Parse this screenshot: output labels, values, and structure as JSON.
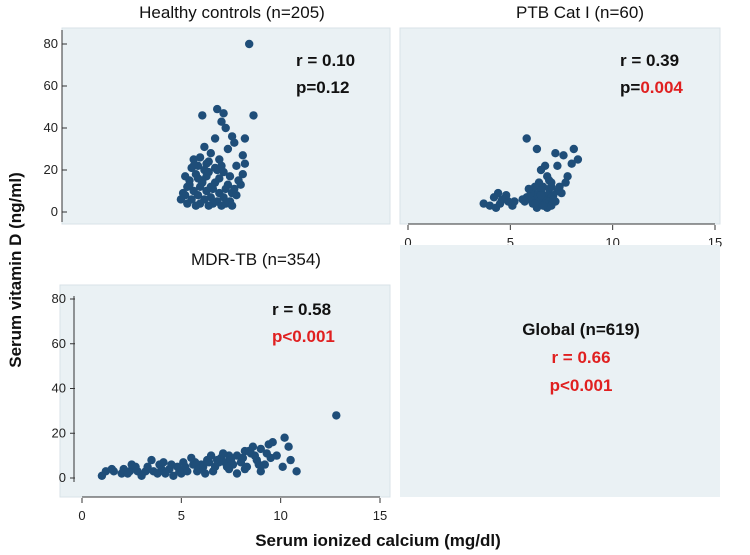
{
  "figure": {
    "ylabel": "Serum vitamin D (ng/ml)",
    "xlabel": "Serum ionized calcium (mg/dl)",
    "global": {
      "label": "Global (n=619)",
      "r": "r = 0.66",
      "p": "p<0.001"
    }
  },
  "colors": {
    "marker": "#1f4e79",
    "text": "#111111",
    "significant": "#e02020",
    "plotBg": "#eaf1f4",
    "axis": "#333333"
  },
  "chart_data": [
    {
      "type": "scatter",
      "title": "Healthy controls (n=205)",
      "r_text": "r = 0.10",
      "p_text": "p=0.12",
      "p_prefix": "",
      "p_value": "",
      "xlim": [
        0,
        15
      ],
      "ylim": [
        0,
        80
      ],
      "y_ticks": [
        0,
        20,
        40,
        60,
        80
      ],
      "x_ticks": [],
      "points": [
        [
          8.4,
          80
        ],
        [
          6.9,
          49
        ],
        [
          7.2,
          47
        ],
        [
          6.2,
          46
        ],
        [
          8.6,
          46
        ],
        [
          7.1,
          43
        ],
        [
          7.3,
          40
        ],
        [
          7.6,
          36
        ],
        [
          6.8,
          35
        ],
        [
          8.2,
          35
        ],
        [
          7.7,
          33
        ],
        [
          6.3,
          31
        ],
        [
          7.4,
          30
        ],
        [
          6.6,
          28
        ],
        [
          8.1,
          27
        ],
        [
          6.1,
          26
        ],
        [
          5.8,
          25
        ],
        [
          7.0,
          25
        ],
        [
          6.5,
          24
        ],
        [
          8.2,
          23
        ],
        [
          6.0,
          22
        ],
        [
          7.8,
          22
        ],
        [
          5.7,
          21
        ],
        [
          6.3,
          20
        ],
        [
          6.9,
          20
        ],
        [
          7.2,
          19
        ],
        [
          5.9,
          18
        ],
        [
          6.4,
          17
        ],
        [
          7.0,
          16
        ],
        [
          5.6,
          15
        ],
        [
          6.2,
          14
        ],
        [
          6.8,
          14
        ],
        [
          7.4,
          13
        ],
        [
          8.0,
          13
        ],
        [
          5.5,
          12
        ],
        [
          6.1,
          12
        ],
        [
          6.7,
          11
        ],
        [
          7.3,
          11
        ],
        [
          5.8,
          10
        ],
        [
          6.4,
          10
        ],
        [
          7.0,
          9
        ],
        [
          7.6,
          9
        ],
        [
          5.4,
          8
        ],
        [
          6.0,
          8
        ],
        [
          6.6,
          7
        ],
        [
          7.2,
          7
        ],
        [
          7.8,
          8
        ],
        [
          5.2,
          6
        ],
        [
          5.7,
          6
        ],
        [
          6.3,
          6
        ],
        [
          6.9,
          5
        ],
        [
          7.5,
          5
        ],
        [
          5.5,
          4
        ],
        [
          6.1,
          4
        ],
        [
          6.7,
          4
        ],
        [
          7.3,
          4
        ],
        [
          5.9,
          3
        ],
        [
          6.5,
          3
        ],
        [
          7.1,
          3
        ],
        [
          7.6,
          3
        ],
        [
          5.6,
          13
        ],
        [
          6.2,
          15
        ],
        [
          6.5,
          19
        ],
        [
          6.8,
          21
        ],
        [
          7.1,
          22
        ],
        [
          7.5,
          17
        ],
        [
          5.3,
          9
        ],
        [
          7.7,
          11
        ],
        [
          6.0,
          16
        ],
        [
          6.6,
          12
        ],
        [
          5.8,
          22
        ],
        [
          7.9,
          15
        ],
        [
          8.1,
          18
        ],
        [
          6.4,
          23
        ],
        [
          5.4,
          17
        ]
      ]
    },
    {
      "type": "scatter",
      "title": "PTB Cat I (n=60)",
      "r_text": "r = 0.39",
      "p_text": "p=0.004",
      "p_prefix": "p=",
      "p_value": "0.004",
      "xlim": [
        0,
        15
      ],
      "ylim": [
        0,
        80
      ],
      "y_ticks": [],
      "x_ticks": [
        0,
        5,
        10,
        15
      ],
      "points": [
        [
          5.8,
          35
        ],
        [
          6.3,
          30
        ],
        [
          8.1,
          30
        ],
        [
          7.2,
          28
        ],
        [
          7.6,
          27
        ],
        [
          8.3,
          25
        ],
        [
          8.0,
          23
        ],
        [
          6.7,
          22
        ],
        [
          7.3,
          22
        ],
        [
          6.5,
          20
        ],
        [
          7.8,
          17
        ],
        [
          6.8,
          17
        ],
        [
          6.4,
          14
        ],
        [
          7.0,
          14
        ],
        [
          6.2,
          12
        ],
        [
          6.6,
          12
        ],
        [
          7.4,
          12
        ],
        [
          6.9,
          11
        ],
        [
          6.1,
          10
        ],
        [
          6.5,
          10
        ],
        [
          7.3,
          10
        ],
        [
          6.3,
          8
        ],
        [
          6.8,
          8
        ],
        [
          7.1,
          8
        ],
        [
          5.8,
          7
        ],
        [
          6.2,
          7
        ],
        [
          7.0,
          7
        ],
        [
          5.6,
          6
        ],
        [
          6.0,
          6
        ],
        [
          6.6,
          6
        ],
        [
          5.7,
          5
        ],
        [
          6.4,
          5
        ],
        [
          6.9,
          5
        ],
        [
          7.2,
          5
        ],
        [
          6.1,
          4
        ],
        [
          6.7,
          4
        ],
        [
          7.0,
          3
        ],
        [
          6.3,
          2
        ],
        [
          6.8,
          2
        ],
        [
          4.4,
          9
        ],
        [
          4.8,
          8
        ],
        [
          4.2,
          7
        ],
        [
          4.6,
          6
        ],
        [
          3.7,
          4
        ],
        [
          4.0,
          3
        ],
        [
          4.3,
          2
        ],
        [
          5.1,
          3
        ],
        [
          5.2,
          5
        ],
        [
          4.9,
          5
        ],
        [
          4.5,
          4
        ],
        [
          7.5,
          9
        ],
        [
          7.1,
          6
        ],
        [
          6.6,
          3
        ],
        [
          6.0,
          9
        ],
        [
          5.9,
          11
        ],
        [
          7.7,
          14
        ],
        [
          6.9,
          15
        ],
        [
          6.2,
          4
        ],
        [
          6.5,
          8
        ],
        [
          7.0,
          12
        ]
      ]
    },
    {
      "type": "scatter",
      "title": "MDR-TB (n=354)",
      "r_text": "r = 0.58",
      "p_text": "p<0.001",
      "p_prefix": "",
      "p_value": "",
      "xlim": [
        0,
        15
      ],
      "ylim": [
        0,
        80
      ],
      "y_ticks": [
        0,
        20,
        40,
        60,
        80
      ],
      "x_ticks": [
        0,
        5,
        10,
        15
      ],
      "points": [
        [
          12.8,
          28
        ],
        [
          10.2,
          18
        ],
        [
          10.4,
          14
        ],
        [
          9.4,
          15
        ],
        [
          9.0,
          13
        ],
        [
          8.6,
          14
        ],
        [
          8.2,
          12
        ],
        [
          8.5,
          11
        ],
        [
          7.8,
          10
        ],
        [
          7.4,
          10
        ],
        [
          7.0,
          9
        ],
        [
          8.8,
          8
        ],
        [
          9.5,
          9
        ],
        [
          9.2,
          6
        ],
        [
          10.1,
          5
        ],
        [
          9.8,
          10
        ],
        [
          10.8,
          3
        ],
        [
          8.0,
          7
        ],
        [
          7.6,
          6
        ],
        [
          7.2,
          7
        ],
        [
          6.8,
          8
        ],
        [
          6.4,
          7
        ],
        [
          6.0,
          6
        ],
        [
          5.6,
          6
        ],
        [
          5.2,
          5
        ],
        [
          4.8,
          5
        ],
        [
          4.4,
          4
        ],
        [
          4.0,
          4
        ],
        [
          3.6,
          3
        ],
        [
          3.2,
          3
        ],
        [
          2.8,
          3
        ],
        [
          2.4,
          3
        ],
        [
          2.0,
          2
        ],
        [
          1.6,
          3
        ],
        [
          1.2,
          3
        ],
        [
          1.0,
          1
        ],
        [
          1.5,
          4
        ],
        [
          2.1,
          4
        ],
        [
          2.7,
          5
        ],
        [
          3.3,
          5
        ],
        [
          3.9,
          6
        ],
        [
          4.5,
          6
        ],
        [
          5.1,
          7
        ],
        [
          5.7,
          7
        ],
        [
          6.3,
          8
        ],
        [
          6.9,
          7
        ],
        [
          7.5,
          8
        ],
        [
          8.1,
          9
        ],
        [
          8.7,
          10
        ],
        [
          9.3,
          11
        ],
        [
          4.2,
          2
        ],
        [
          5.0,
          2
        ],
        [
          5.8,
          3
        ],
        [
          6.6,
          3
        ],
        [
          7.4,
          4
        ],
        [
          8.2,
          4
        ],
        [
          3.0,
          1
        ],
        [
          4.6,
          1
        ],
        [
          6.2,
          2
        ],
        [
          7.8,
          2
        ],
        [
          2.5,
          6
        ],
        [
          3.5,
          8
        ],
        [
          5.5,
          9
        ],
        [
          6.5,
          10
        ],
        [
          7.1,
          11
        ],
        [
          8.4,
          12
        ],
        [
          3.8,
          2
        ],
        [
          5.3,
          3
        ],
        [
          6.7,
          5
        ],
        [
          8.9,
          6
        ],
        [
          2.3,
          2
        ],
        [
          4.1,
          7
        ],
        [
          5.9,
          4
        ],
        [
          7.3,
          5
        ],
        [
          9.0,
          3
        ],
        [
          9.6,
          16
        ],
        [
          10.5,
          8
        ],
        [
          8.3,
          5
        ],
        [
          4.9,
          3
        ],
        [
          6.1,
          5
        ]
      ]
    }
  ]
}
